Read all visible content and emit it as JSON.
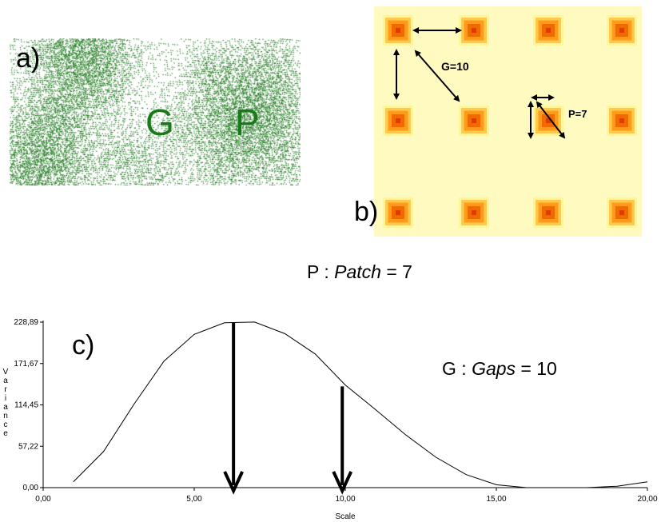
{
  "panel_a": {
    "label": "a)",
    "gap_letter": "G",
    "patch_letter": "P",
    "texture_color": "#1f7a1f"
  },
  "panel_b": {
    "label": "b)",
    "background_color": "#fffbc0",
    "gap_label": "G=10",
    "patch_label": "P=7",
    "square_colors": [
      "#fff59a",
      "#ffc94d",
      "#ff9a1a",
      "#f06a00",
      "#e03a00"
    ]
  },
  "captions": {
    "patch_prefix": "P : ",
    "patch_word": "Patch",
    "patch_suffix": " = 7",
    "gaps_prefix": "G : ",
    "gaps_word": "Gaps",
    "gaps_suffix": " = 10"
  },
  "panel_c": {
    "label": "c)"
  },
  "chart_data": {
    "type": "line",
    "title": "",
    "xlabel": "Scale",
    "ylabel": "Variance",
    "xlim": [
      0,
      20
    ],
    "ylim": [
      0,
      228.89
    ],
    "xticks": [
      "0,00",
      "5,00",
      "10,00",
      "15,00",
      "20,00"
    ],
    "yticks": [
      "0,00",
      "57,22",
      "114,45",
      "171,67",
      "228,89"
    ],
    "grid": false,
    "series": [
      {
        "x": [
          1,
          2,
          3,
          4,
          5,
          6,
          7,
          8,
          9,
          10,
          11,
          12,
          13,
          14,
          15,
          16,
          17,
          18,
          19,
          20
        ],
        "values": [
          8,
          50,
          115,
          175,
          212,
          228,
          229,
          213,
          185,
          142,
          108,
          73,
          42,
          18,
          4,
          0,
          0,
          0,
          2,
          8
        ]
      }
    ],
    "markers": [
      {
        "type": "arrow-down",
        "x": 6.3,
        "y_top": 228.89
      },
      {
        "type": "arrow-down",
        "x": 9.9,
        "y_top": 140
      }
    ]
  }
}
